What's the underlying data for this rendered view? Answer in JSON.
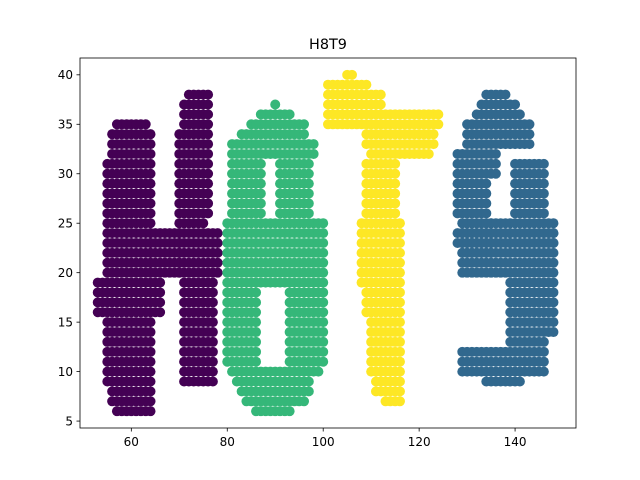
{
  "chart_data": {
    "type": "scatter",
    "title": "H8T9",
    "xlabel": "",
    "ylabel": "",
    "xlim": [
      49.3,
      152.7
    ],
    "ylim": [
      4.3,
      41.7
    ],
    "xticks": [
      60,
      80,
      100,
      120,
      140
    ],
    "yticks": [
      5,
      10,
      15,
      20,
      25,
      30,
      35,
      40
    ],
    "grid": false,
    "legend": "none",
    "series": [
      {
        "letter": "H",
        "color": "#440154",
        "rects": [
          [
            57,
            64,
            6,
            6
          ],
          [
            56,
            64,
            7,
            8
          ],
          [
            55,
            64,
            9,
            15
          ],
          [
            53,
            66,
            16,
            19
          ],
          [
            55,
            64,
            20,
            31
          ],
          [
            56,
            64,
            32,
            34
          ],
          [
            57,
            63,
            35,
            35
          ],
          [
            64,
            70,
            20,
            24
          ],
          [
            70,
            75,
            25,
            25
          ],
          [
            71,
            77,
            9,
            19
          ],
          [
            70,
            78,
            20,
            24
          ],
          [
            70,
            76,
            26,
            34
          ],
          [
            71,
            76,
            35,
            37
          ],
          [
            72,
            76,
            38,
            38
          ]
        ]
      },
      {
        "letter": "8",
        "color": "#35b779",
        "rects": [
          [
            86,
            93,
            6,
            6
          ],
          [
            84,
            96,
            7,
            7
          ],
          [
            83,
            97,
            8,
            8
          ],
          [
            82,
            97,
            9,
            9
          ],
          [
            81,
            99,
            10,
            10
          ],
          [
            80,
            86,
            11,
            18
          ],
          [
            93,
            100,
            11,
            18
          ],
          [
            80,
            100,
            19,
            25
          ],
          [
            81,
            87,
            26,
            31
          ],
          [
            91,
            97,
            26,
            31
          ],
          [
            81,
            98,
            32,
            33
          ],
          [
            83,
            96,
            34,
            34
          ],
          [
            85,
            96,
            35,
            35
          ],
          [
            87,
            93,
            36,
            36
          ],
          [
            90,
            90,
            37,
            37
          ]
        ]
      },
      {
        "letter": "T",
        "color": "#fde725",
        "rects": [
          [
            105,
            106,
            40,
            40
          ],
          [
            101,
            109,
            39,
            39
          ],
          [
            101,
            112,
            37,
            38
          ],
          [
            101,
            124,
            35,
            36
          ],
          [
            109,
            123,
            33,
            34
          ],
          [
            110,
            122,
            32,
            32
          ],
          [
            109,
            115,
            26,
            31
          ],
          [
            108,
            116,
            19,
            25
          ],
          [
            109,
            116,
            16,
            18
          ],
          [
            110,
            116,
            10,
            15
          ],
          [
            111,
            116,
            8,
            9
          ],
          [
            113,
            116,
            7,
            7
          ]
        ]
      },
      {
        "letter": "9",
        "color": "#31688e",
        "rects": [
          [
            134,
            138,
            38,
            38
          ],
          [
            133,
            140,
            37,
            37
          ],
          [
            132,
            141,
            36,
            36
          ],
          [
            130,
            143,
            33,
            35
          ],
          [
            128,
            136,
            30,
            32
          ],
          [
            128,
            134,
            26,
            29
          ],
          [
            140,
            146,
            26,
            31
          ],
          [
            129,
            135,
            22,
            25
          ],
          [
            129,
            148,
            20,
            25
          ],
          [
            128,
            148,
            23,
            24
          ],
          [
            139,
            148,
            14,
            19
          ],
          [
            139,
            146,
            13,
            13
          ],
          [
            129,
            146,
            10,
            12
          ],
          [
            134,
            141,
            9,
            9
          ]
        ]
      }
    ]
  }
}
